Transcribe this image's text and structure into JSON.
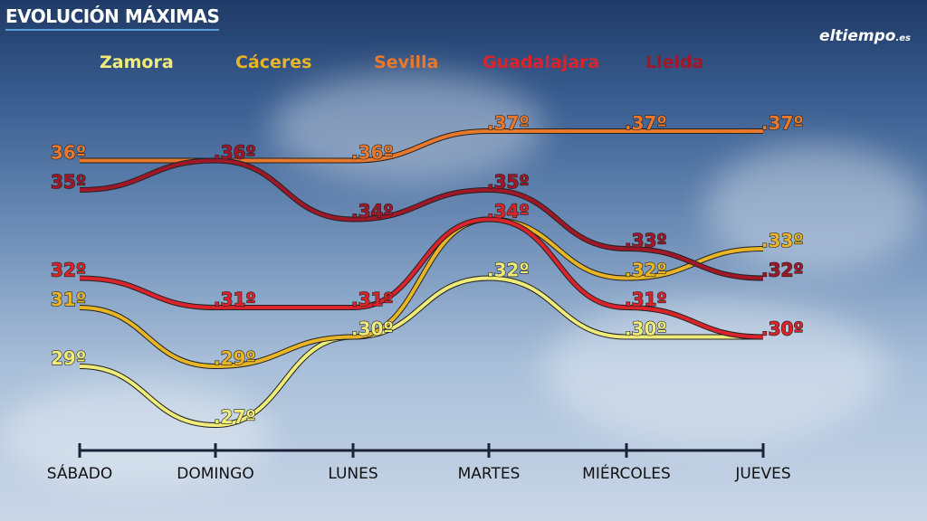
{
  "title": "EVOLUCIÓN MÁXIMAS",
  "logo": {
    "main": "eltiempo",
    "suffix": ".es"
  },
  "chart_data": {
    "type": "line",
    "categories": [
      "SÁBADO",
      "DOMINGO",
      "LUNES",
      "MARTES",
      "MIÉRCOLES",
      "JUEVES"
    ],
    "unit": "º",
    "legend_position": "top",
    "grid": false,
    "series": [
      {
        "name": "Zamora",
        "color": "#f0ec7a",
        "values": [
          29,
          27,
          30,
          32,
          30,
          30
        ],
        "labeled": [
          true,
          true,
          true,
          true,
          true,
          false
        ]
      },
      {
        "name": "Cáceres",
        "color": "#e8b526",
        "values": [
          31,
          29,
          30,
          34,
          32,
          33
        ],
        "labeled": [
          true,
          true,
          false,
          false,
          true,
          true
        ]
      },
      {
        "name": "Sevilla",
        "color": "#e8782c",
        "values": [
          36,
          36,
          36,
          37,
          37,
          37
        ],
        "labeled": [
          true,
          false,
          true,
          true,
          true,
          true
        ]
      },
      {
        "name": "Guadalajara",
        "color": "#d8242a",
        "values": [
          32,
          31,
          31,
          34,
          31,
          30
        ],
        "labeled": [
          true,
          true,
          true,
          true,
          true,
          true
        ]
      },
      {
        "name": "Lleida",
        "color": "#a01828",
        "values": [
          35,
          36,
          34,
          35,
          33,
          32
        ],
        "labeled": [
          true,
          true,
          true,
          true,
          true,
          true
        ]
      }
    ]
  }
}
